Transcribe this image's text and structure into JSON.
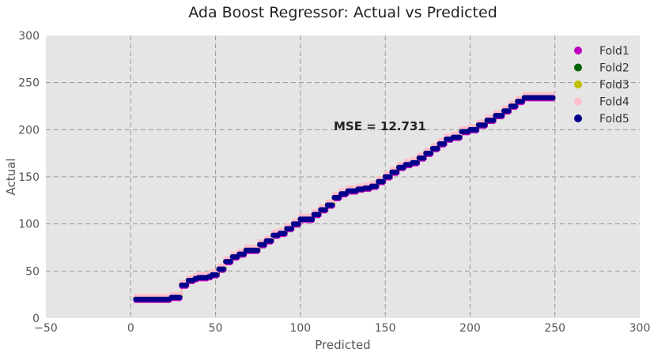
{
  "chart_data": {
    "type": "scatter",
    "title": "Ada Boost Regressor: Actual vs Predicted",
    "xlabel": "Predicted",
    "ylabel": "Actual",
    "xlim": [
      -50,
      300
    ],
    "ylim": [
      0,
      300
    ],
    "xticks": [
      -50,
      0,
      50,
      100,
      150,
      200,
      250,
      300
    ],
    "yticks": [
      0,
      50,
      100,
      150,
      200,
      250,
      300
    ],
    "xtick_labels": [
      "−50",
      "0",
      "50",
      "100",
      "150",
      "200",
      "250",
      "300"
    ],
    "ytick_labels": [
      "0",
      "50",
      "100",
      "150",
      "200",
      "250",
      "300"
    ],
    "grid": true,
    "legend_position": "top-right",
    "annotation": "MSE = 12.731",
    "series": [
      {
        "name": "Fold1",
        "color": "#bf00bf"
      },
      {
        "name": "Fold2",
        "color": "#006400"
      },
      {
        "name": "Fold3",
        "color": "#bfbf00"
      },
      {
        "name": "Fold4",
        "color": "#ffc0cb"
      },
      {
        "name": "Fold5",
        "color": "#00008b"
      }
    ],
    "steps_x": [
      3,
      20,
      24,
      30,
      34,
      38,
      40,
      46,
      48,
      52,
      56,
      60,
      64,
      68,
      72,
      76,
      80,
      84,
      88,
      92,
      96,
      100,
      105,
      108,
      112,
      116,
      120,
      124,
      128,
      134,
      138,
      142,
      146,
      150,
      154,
      158,
      162,
      166,
      170,
      174,
      178,
      182,
      186,
      190,
      195,
      200,
      205,
      210,
      215,
      220,
      224,
      228,
      232,
      250
    ],
    "steps_y": [
      20,
      20,
      22,
      35,
      40,
      42,
      43,
      44,
      46,
      52,
      60,
      65,
      68,
      72,
      72,
      78,
      82,
      88,
      90,
      95,
      100,
      105,
      105,
      110,
      115,
      120,
      128,
      132,
      135,
      137,
      138,
      140,
      145,
      150,
      155,
      160,
      163,
      165,
      170,
      175,
      180,
      185,
      190,
      192,
      198,
      200,
      205,
      210,
      215,
      220,
      225,
      230,
      234,
      234
    ],
    "fold_offsets": [
      -1.5,
      1.5,
      2.5,
      3.5,
      0
    ]
  }
}
